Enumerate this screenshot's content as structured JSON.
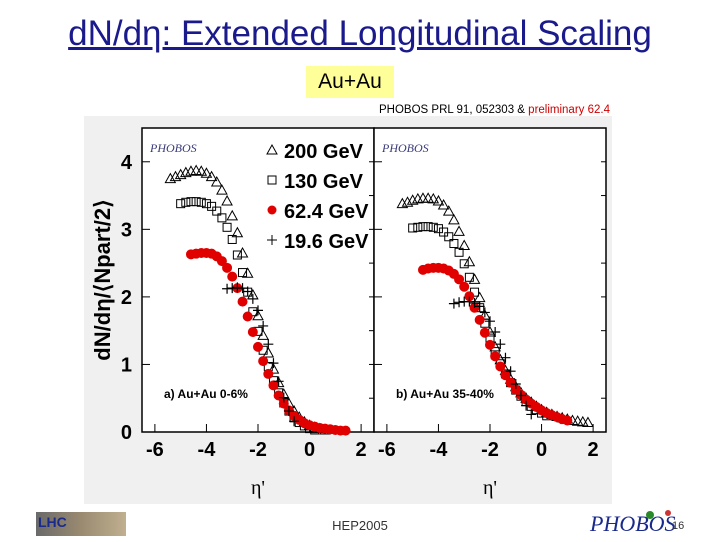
{
  "slide": {
    "title": "dN/dη: Extended Longitudinal Scaling",
    "badge": "Au+Au",
    "citation_main": "PHOBOS PRL 91, 052303 & ",
    "citation_preliminary": "preliminary 62.4",
    "footer_center": "HEP2005",
    "footer_left_logo": "LHC",
    "footer_right_logo": "PHOBOS",
    "page_number": "16"
  },
  "colors": {
    "title": "#1a1a8c",
    "badge_bg": "#ffff99",
    "red_series": "#e00000",
    "figure_bg": "#f0f0f0"
  },
  "chart_data": {
    "type": "scatter",
    "ylabel": "dN/dη/⟨Npart/2⟩",
    "xlabel": "η'",
    "xlim": [
      -6.5,
      2.5
    ],
    "ylim": [
      0,
      4.5
    ],
    "xticks": [
      -6,
      -4,
      -2,
      0,
      2
    ],
    "yticks": [
      0,
      1,
      2,
      3,
      4
    ],
    "legend": {
      "placement": "top-left",
      "entries": [
        "200 GeV",
        "130 GeV",
        "62.4 GeV",
        "19.6 GeV"
      ]
    },
    "panels": [
      {
        "label": "a) Au+Au 0-6%",
        "series": [
          {
            "name": "200 GeV",
            "marker": "triangle",
            "x": [
              -5.4,
              -5.2,
              -5.0,
              -4.8,
              -4.6,
              -4.4,
              -4.2,
              -4.0,
              -3.8,
              -3.6,
              -3.4,
              -3.2,
              -3.0,
              -2.8,
              -2.6,
              -2.4,
              -2.2,
              -2.0,
              -1.8,
              -1.6,
              -1.4,
              -1.2,
              -1.0,
              -0.8,
              -0.6,
              -0.4,
              -0.2,
              0.0,
              0.2,
              0.4,
              0.6
            ],
            "y": [
              3.75,
              3.78,
              3.81,
              3.84,
              3.86,
              3.87,
              3.86,
              3.83,
              3.78,
              3.7,
              3.58,
              3.42,
              3.2,
              2.95,
              2.65,
              2.35,
              2.03,
              1.72,
              1.43,
              1.17,
              0.93,
              0.73,
              0.56,
              0.42,
              0.31,
              0.22,
              0.15,
              0.1,
              0.07,
              0.05,
              0.03
            ]
          },
          {
            "name": "130 GeV",
            "marker": "square",
            "x": [
              -5.0,
              -4.8,
              -4.6,
              -4.4,
              -4.2,
              -4.0,
              -3.8,
              -3.6,
              -3.4,
              -3.2,
              -3.0,
              -2.8,
              -2.6,
              -2.4,
              -2.2,
              -2.0,
              -1.8,
              -1.6,
              -1.4,
              -1.2,
              -1.0,
              -0.8,
              -0.6,
              -0.4,
              -0.2,
              0.0,
              0.2
            ],
            "y": [
              3.38,
              3.4,
              3.41,
              3.41,
              3.4,
              3.38,
              3.34,
              3.27,
              3.17,
              3.03,
              2.85,
              2.62,
              2.36,
              2.07,
              1.78,
              1.49,
              1.21,
              0.97,
              0.76,
              0.58,
              0.43,
              0.31,
              0.21,
              0.14,
              0.09,
              0.05,
              0.03
            ]
          },
          {
            "name": "62.4 GeV",
            "marker": "circle",
            "x": [
              -4.6,
              -4.4,
              -4.2,
              -4.0,
              -3.8,
              -3.6,
              -3.4,
              -3.2,
              -3.0,
              -2.8,
              -2.6,
              -2.4,
              -2.2,
              -2.0,
              -1.8,
              -1.6,
              -1.4,
              -1.2,
              -1.0,
              -0.8,
              -0.6,
              -0.4,
              -0.2,
              0.0,
              0.2,
              0.4,
              0.6,
              0.8,
              1.0,
              1.2,
              1.4
            ],
            "y": [
              2.63,
              2.64,
              2.65,
              2.65,
              2.64,
              2.6,
              2.53,
              2.43,
              2.3,
              2.13,
              1.93,
              1.71,
              1.48,
              1.26,
              1.05,
              0.86,
              0.69,
              0.54,
              0.42,
              0.32,
              0.24,
              0.18,
              0.13,
              0.1,
              0.08,
              0.06,
              0.05,
              0.04,
              0.03,
              0.02,
              0.02
            ]
          },
          {
            "name": "19.6 GeV",
            "marker": "cross",
            "x": [
              -3.2,
              -3.0,
              -2.8,
              -2.6,
              -2.4,
              -2.2,
              -2.0,
              -1.8,
              -1.6,
              -1.4,
              -1.2,
              -1.0,
              -0.8,
              -0.6
            ],
            "y": [
              2.12,
              2.13,
              2.14,
              2.13,
              2.08,
              1.97,
              1.8,
              1.57,
              1.3,
              1.02,
              0.75,
              0.51,
              0.31,
              0.16
            ]
          }
        ]
      },
      {
        "label": "b) Au+Au 35-40%",
        "series": [
          {
            "name": "200 GeV",
            "marker": "triangle",
            "x": [
              -5.4,
              -5.2,
              -5.0,
              -4.8,
              -4.6,
              -4.4,
              -4.2,
              -4.0,
              -3.8,
              -3.6,
              -3.4,
              -3.2,
              -3.0,
              -2.8,
              -2.6,
              -2.4,
              -2.2,
              -2.0,
              -1.8,
              -1.6,
              -1.4,
              -1.2,
              -1.0,
              -0.8,
              -0.6,
              -0.4,
              -0.2,
              0.0,
              0.2,
              0.4,
              0.6,
              0.8,
              1.0,
              1.2,
              1.4,
              1.6,
              1.8
            ],
            "y": [
              3.38,
              3.4,
              3.43,
              3.45,
              3.46,
              3.46,
              3.45,
              3.42,
              3.36,
              3.27,
              3.14,
              2.97,
              2.76,
              2.52,
              2.26,
              1.99,
              1.73,
              1.48,
              1.26,
              1.07,
              0.91,
              0.78,
              0.67,
              0.58,
              0.5,
              0.44,
              0.38,
              0.33,
              0.29,
              0.26,
              0.23,
              0.21,
              0.19,
              0.17,
              0.16,
              0.15,
              0.14
            ]
          },
          {
            "name": "130 GeV",
            "marker": "square",
            "x": [
              -5.0,
              -4.8,
              -4.6,
              -4.4,
              -4.2,
              -4.0,
              -3.8,
              -3.6,
              -3.4,
              -3.2,
              -3.0,
              -2.8,
              -2.6,
              -2.4,
              -2.2,
              -2.0,
              -1.8,
              -1.6,
              -1.4,
              -1.2,
              -1.0,
              -0.8,
              -0.6,
              -0.4,
              -0.2,
              0.0,
              0.2
            ],
            "y": [
              3.02,
              3.03,
              3.04,
              3.04,
              3.03,
              3.01,
              2.96,
              2.89,
              2.79,
              2.66,
              2.49,
              2.29,
              2.07,
              1.84,
              1.61,
              1.39,
              1.19,
              1.01,
              0.86,
              0.73,
              0.62,
              0.53,
              0.45,
              0.38,
              0.33,
              0.28,
              0.24
            ]
          },
          {
            "name": "62.4 GeV",
            "marker": "circle",
            "x": [
              -4.6,
              -4.4,
              -4.2,
              -4.0,
              -3.8,
              -3.6,
              -3.4,
              -3.2,
              -3.0,
              -2.8,
              -2.6,
              -2.4,
              -2.2,
              -2.0,
              -1.8,
              -1.6,
              -1.4,
              -1.2,
              -1.0,
              -0.8,
              -0.6,
              -0.4,
              -0.2,
              0.0,
              0.2,
              0.4,
              0.6,
              0.8,
              1.0
            ],
            "y": [
              2.4,
              2.42,
              2.43,
              2.43,
              2.42,
              2.39,
              2.34,
              2.26,
              2.15,
              2.01,
              1.84,
              1.66,
              1.47,
              1.29,
              1.12,
              0.97,
              0.84,
              0.73,
              0.63,
              0.55,
              0.48,
              0.42,
              0.37,
              0.32,
              0.28,
              0.25,
              0.22,
              0.19,
              0.17
            ]
          },
          {
            "name": "19.6 GeV",
            "marker": "cross",
            "x": [
              -3.4,
              -3.2,
              -3.0,
              -2.8,
              -2.6,
              -2.4,
              -2.2,
              -2.0,
              -1.8,
              -1.6,
              -1.4,
              -1.2,
              -1.0,
              -0.8,
              -0.6,
              -0.4
            ],
            "y": [
              1.9,
              1.92,
              1.93,
              1.93,
              1.91,
              1.86,
              1.77,
              1.64,
              1.48,
              1.3,
              1.1,
              0.9,
              0.71,
              0.54,
              0.39,
              0.26
            ]
          }
        ]
      }
    ]
  }
}
